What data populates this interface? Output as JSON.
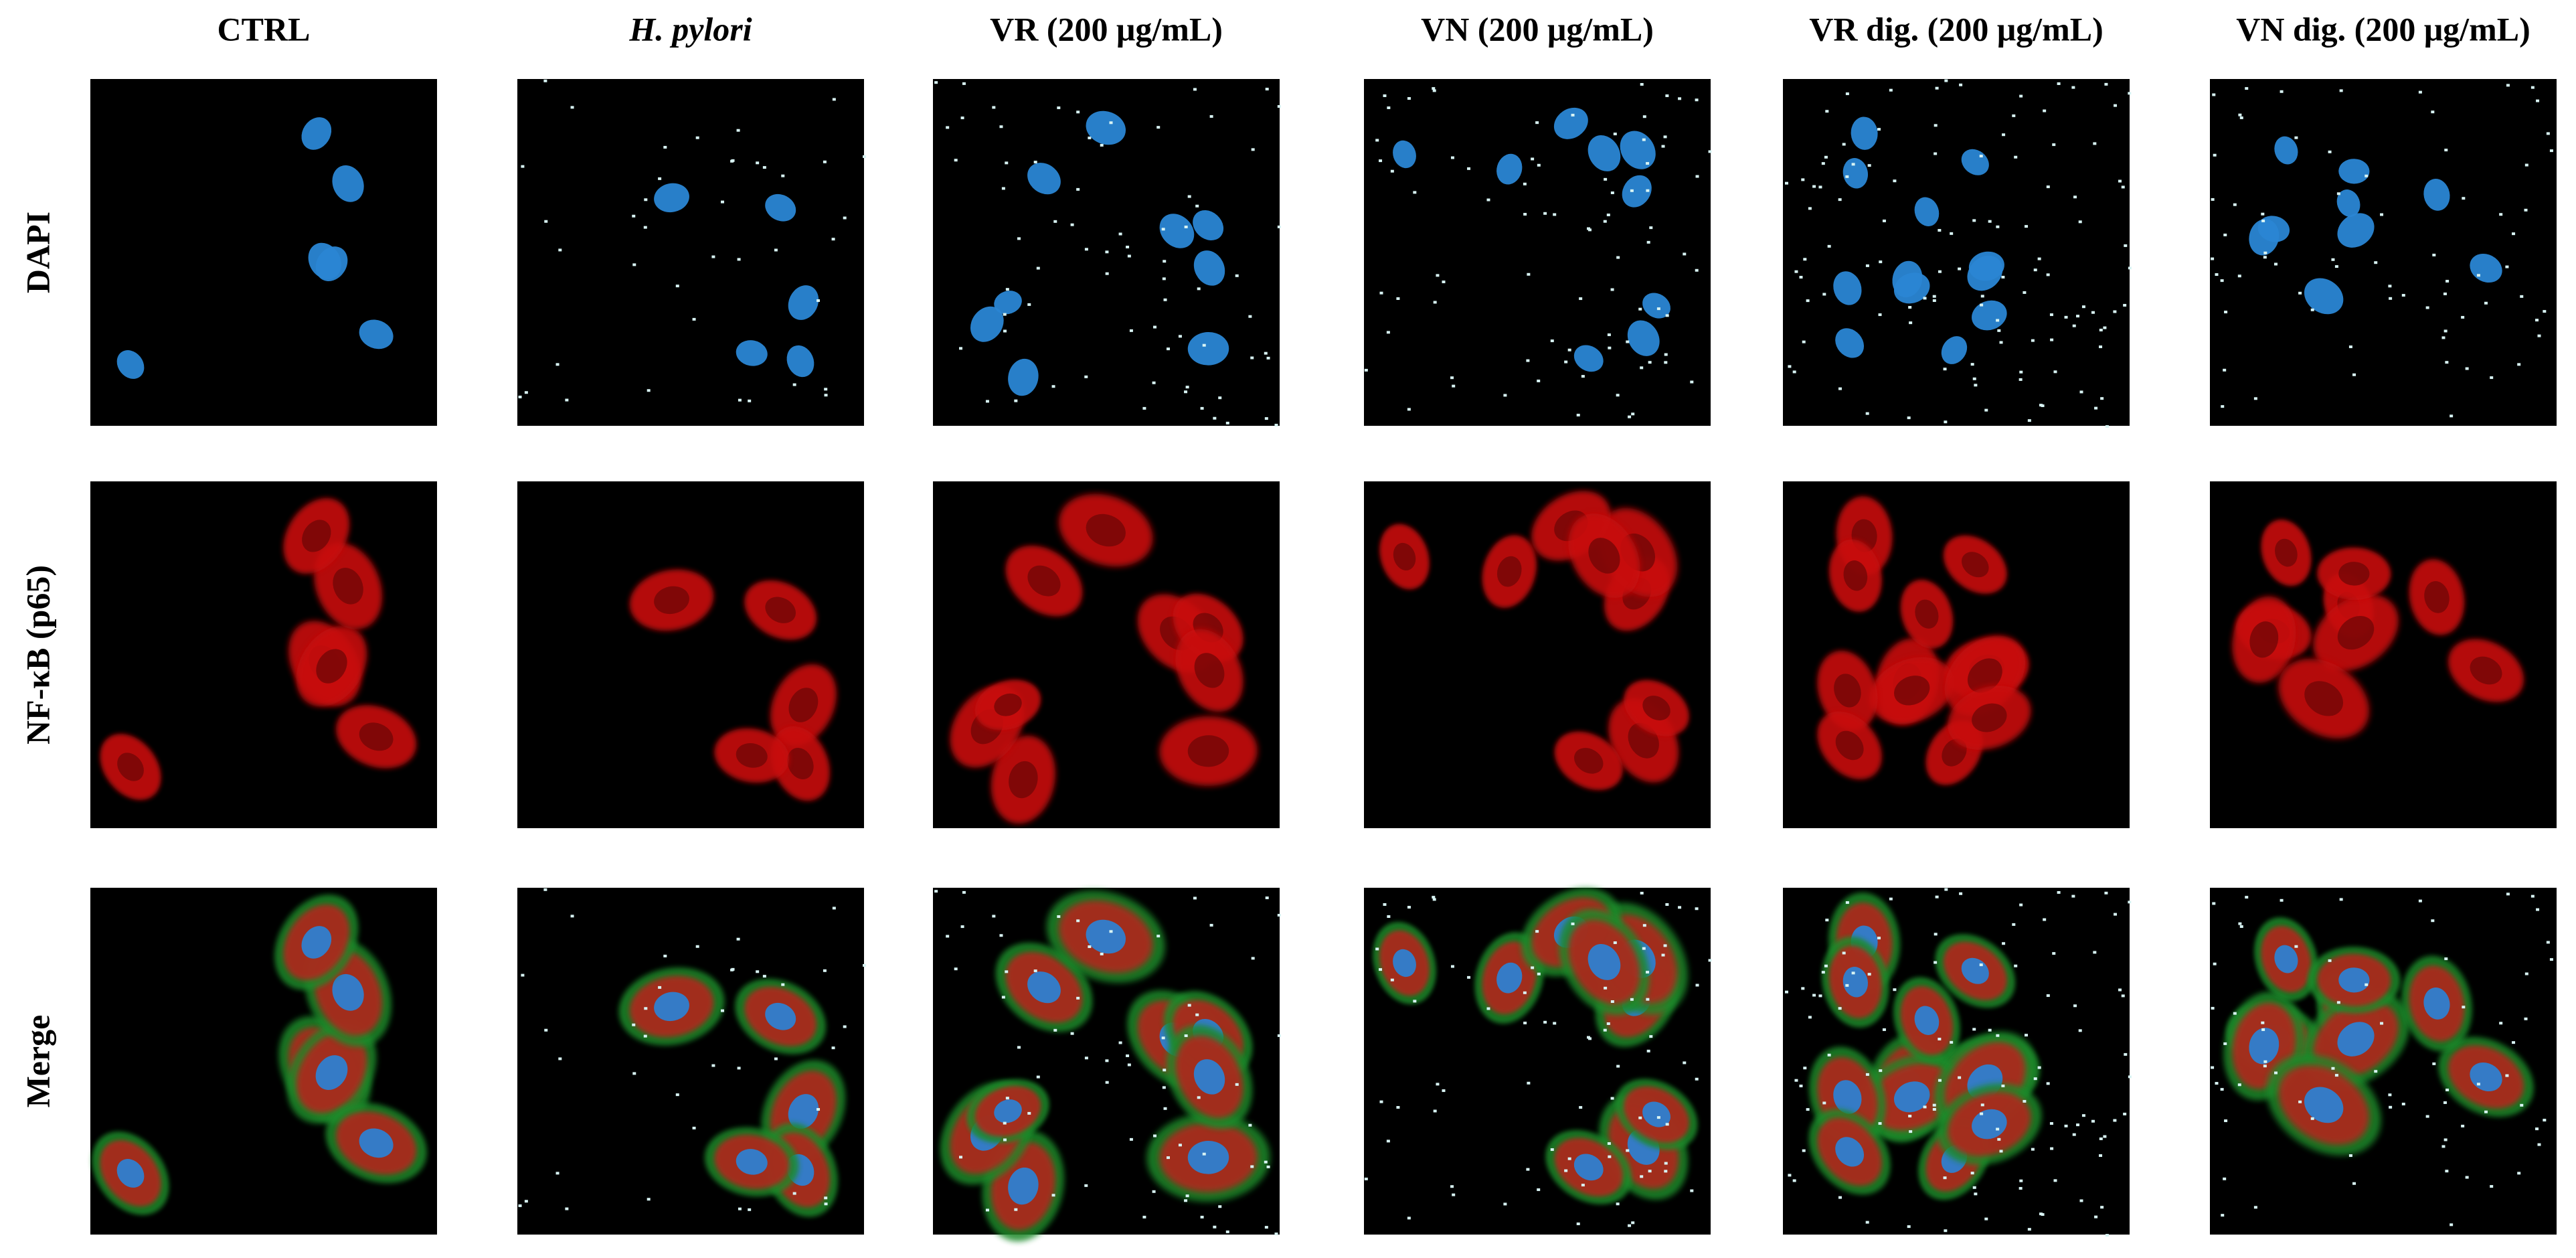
{
  "columns": [
    {
      "label": "CTRL",
      "italic": false
    },
    {
      "label": "H. pylori",
      "italic": true
    },
    {
      "label": "VR (200 μg/mL)",
      "italic": false
    },
    {
      "label": "VN (200 μg/mL)",
      "italic": false
    },
    {
      "label": "VR dig. (200 μg/mL)",
      "italic": false
    },
    {
      "label": "VN dig. (200 μg/mL)",
      "italic": false
    }
  ],
  "rows": [
    {
      "label": "DAPI"
    },
    {
      "label": "NF-κB (p65)"
    },
    {
      "label": "Merge"
    }
  ]
}
